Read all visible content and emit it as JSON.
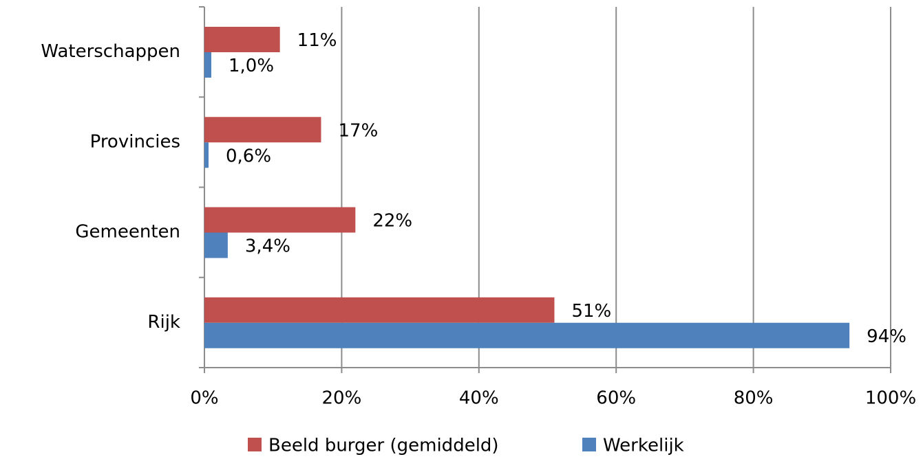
{
  "chart_data": {
    "type": "hbar",
    "categories": [
      "Waterschappen",
      "Provincies",
      "Gemeenten",
      "Rijk"
    ],
    "series": [
      {
        "name": "Beeld burger (gemiddeld)",
        "color": "#c0504d",
        "values": [
          11,
          17,
          22,
          51
        ],
        "value_labels": [
          "11%",
          "17%",
          "22%",
          "51%"
        ]
      },
      {
        "name": "Werkelijk",
        "color": "#4f81bd",
        "values": [
          1.0,
          0.6,
          3.4,
          94
        ],
        "value_labels": [
          "1,0%",
          "0,6%",
          "3,4%",
          "94%"
        ]
      }
    ],
    "xlim": [
      0,
      100
    ],
    "xticks": [
      {
        "value": 0,
        "label": "0%"
      },
      {
        "value": 20,
        "label": "20%"
      },
      {
        "value": 40,
        "label": "40%"
      },
      {
        "value": 60,
        "label": "60%"
      },
      {
        "value": 80,
        "label": "80%"
      },
      {
        "value": 100,
        "label": "100%"
      }
    ],
    "grid": true,
    "legend": "bottom"
  }
}
